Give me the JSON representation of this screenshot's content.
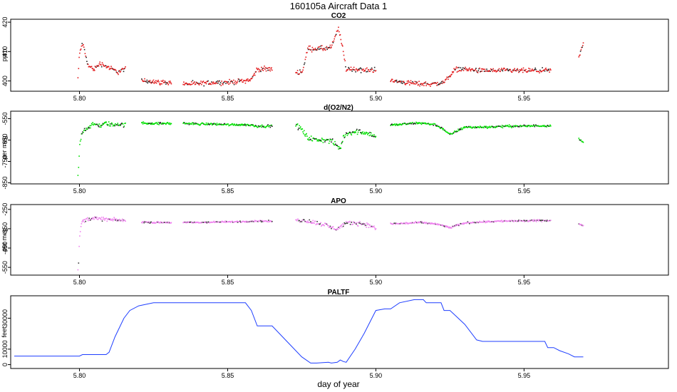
{
  "figure": {
    "title": "160105a   Aircraft Data 1",
    "xlabel": "day of year"
  },
  "chart_data": [
    {
      "type": "scatter",
      "title": "CO2",
      "ylabel": "ppm",
      "color": "#e31a1c",
      "shadow_color": "#222222",
      "xlim": [
        5.778,
        5.998
      ],
      "ylim": [
        396.5,
        421
      ],
      "xticks": [
        5.8,
        5.85,
        5.9,
        5.95
      ],
      "xtick_labels": [
        "5.80",
        "5.85",
        "5.90",
        "5.95"
      ],
      "yticks": [
        400,
        410,
        420
      ],
      "ytick_labels": [
        "400",
        "410",
        "420"
      ],
      "series": [
        {
          "segments": [
            {
              "x": [
                5.7995,
                5.8,
                5.801,
                5.802,
                5.803,
                5.805,
                5.807,
                5.809,
                5.811,
                5.813,
                5.815,
                5.8155
              ],
              "y": [
                401,
                409,
                413,
                409,
                405,
                404,
                406,
                405,
                404,
                403,
                404,
                404
              ],
              "spread": 1.2
            },
            {
              "x": [
                5.821,
                5.824,
                5.827,
                5.831
              ],
              "y": [
                400,
                400,
                399.5,
                399.5
              ],
              "spread": 1.2
            },
            {
              "x": [
                5.835,
                5.84,
                5.845,
                5.85,
                5.855,
                5.858,
                5.86,
                5.865
              ],
              "y": [
                399,
                399,
                399.5,
                399.5,
                400,
                400.5,
                404,
                404
              ],
              "spread": 1.2
            },
            {
              "x": [
                5.873,
                5.875,
                5.876,
                5.877,
                5.88,
                5.883,
                5.885,
                5.886,
                5.887,
                5.8875,
                5.888,
                5.889,
                5.89,
                5.893,
                5.897,
                5.9
              ],
              "y": [
                403,
                403,
                406,
                411,
                411,
                411,
                411.5,
                414,
                417,
                418,
                415,
                410,
                404,
                404,
                403.5,
                404
              ],
              "spread": 1.3
            },
            {
              "x": [
                5.905,
                5.91,
                5.915,
                5.92,
                5.923,
                5.925,
                5.927,
                5.93,
                5.935,
                5.94,
                5.945,
                5.95,
                5.955,
                5.959
              ],
              "y": [
                400,
                399.5,
                399,
                399,
                399.5,
                402,
                404,
                404,
                403.5,
                403.5,
                403.5,
                403.5,
                403.5,
                403.5
              ],
              "spread": 1.2
            },
            {
              "x": [
                5.9685,
                5.9695,
                5.97
              ],
              "y": [
                408,
                411,
                413
              ],
              "spread": 1.0
            }
          ]
        }
      ]
    },
    {
      "type": "scatter",
      "title": "d(O2/N2)",
      "ylabel": "per meg",
      "color": "#00e000",
      "shadow_color": "#1a1a1a",
      "xlim": [
        5.778,
        5.998
      ],
      "ylim": [
        -855,
        -515
      ],
      "xticks": [
        5.8,
        5.85,
        5.9,
        5.95
      ],
      "xtick_labels": [
        "5.80",
        "5.85",
        "5.90",
        "5.95"
      ],
      "yticks": [
        -550,
        -650,
        -750,
        -850
      ],
      "ytick_labels": [
        "-550",
        "-650",
        "-750",
        "-850"
      ],
      "series": [
        {
          "segments": [
            {
              "x": [
                5.7995,
                5.7998,
                5.8,
                5.8005,
                5.801,
                5.802,
                5.803,
                5.805,
                5.807,
                5.809,
                5.811,
                5.813,
                5.815,
                5.8155
              ],
              "y": [
                -820,
                -760,
                -680,
                -640,
                -610,
                -600,
                -590,
                -575,
                -585,
                -570,
                -580,
                -575,
                -580,
                -580
              ],
              "spread": 15
            },
            {
              "x": [
                5.821,
                5.824,
                5.827,
                5.831
              ],
              "y": [
                -570,
                -572,
                -573,
                -572
              ],
              "spread": 8
            },
            {
              "x": [
                5.835,
                5.84,
                5.845,
                5.85,
                5.855,
                5.858,
                5.86,
                5.865
              ],
              "y": [
                -572,
                -575,
                -575,
                -578,
                -578,
                -580,
                -585,
                -585
              ],
              "spread": 8
            },
            {
              "x": [
                5.873,
                5.875,
                5.877,
                5.88,
                5.883,
                5.885,
                5.887,
                5.888,
                5.889,
                5.89,
                5.893,
                5.897,
                5.9
              ],
              "y": [
                -580,
                -600,
                -640,
                -650,
                -650,
                -655,
                -680,
                -690,
                -640,
                -620,
                -610,
                -615,
                -635
              ],
              "spread": 18
            },
            {
              "x": [
                5.905,
                5.91,
                5.915,
                5.92,
                5.923,
                5.924,
                5.925,
                5.927,
                5.93,
                5.935,
                5.94,
                5.945,
                5.95,
                5.955,
                5.959
              ],
              "y": [
                -580,
                -575,
                -570,
                -578,
                -600,
                -615,
                -625,
                -610,
                -590,
                -590,
                -588,
                -585,
                -585,
                -583,
                -583
              ],
              "spread": 8
            },
            {
              "x": [
                5.9685,
                5.969,
                5.97
              ],
              "y": [
                -640,
                -650,
                -660
              ],
              "spread": 6
            }
          ]
        }
      ]
    },
    {
      "type": "scatter",
      "title": "APO",
      "ylabel": "per meg",
      "color": "#ee82ee",
      "shadow_color": "#3a3a3a",
      "xlim": [
        5.778,
        5.998
      ],
      "ylim": [
        -590,
        -225
      ],
      "xticks": [
        5.8,
        5.85,
        5.9,
        5.95
      ],
      "xtick_labels": [
        "5.80",
        "5.85",
        "5.90",
        "5.95"
      ],
      "yticks": [
        -250,
        -350,
        -450,
        -550
      ],
      "ytick_labels": [
        "-250",
        "-350",
        "-450",
        "-550"
      ],
      "series": [
        {
          "segments": [
            {
              "x": [
                5.7995,
                5.7998,
                5.8,
                5.8005,
                5.801,
                5.803,
                5.805,
                5.807,
                5.809,
                5.811,
                5.813,
                5.8155
              ],
              "y": [
                -570,
                -500,
                -400,
                -340,
                -310,
                -300,
                -295,
                -300,
                -300,
                -305,
                -305,
                -310
              ],
              "spread": 14
            },
            {
              "x": [
                5.821,
                5.825,
                5.831
              ],
              "y": [
                -315,
                -318,
                -318
              ],
              "spread": 6
            },
            {
              "x": [
                5.835,
                5.84,
                5.845,
                5.85,
                5.855,
                5.86,
                5.865
              ],
              "y": [
                -318,
                -318,
                -316,
                -315,
                -313,
                -310,
                -312
              ],
              "spread": 6
            },
            {
              "x": [
                5.873,
                5.877,
                5.88,
                5.883,
                5.885,
                5.887,
                5.889,
                5.891,
                5.893,
                5.896,
                5.899,
                5.9
              ],
              "y": [
                -305,
                -310,
                -320,
                -330,
                -345,
                -350,
                -330,
                -320,
                -320,
                -325,
                -340,
                -350
              ],
              "spread": 16
            },
            {
              "x": [
                5.905,
                5.91,
                5.915,
                5.92,
                5.923,
                5.925,
                5.927,
                5.93,
                5.935,
                5.94,
                5.945,
                5.95,
                5.955,
                5.959
              ],
              "y": [
                -325,
                -322,
                -318,
                -325,
                -335,
                -345,
                -335,
                -320,
                -315,
                -312,
                -310,
                -310,
                -308,
                -308
              ],
              "spread": 7
            },
            {
              "x": [
                5.9685,
                5.969,
                5.97
              ],
              "y": [
                -325,
                -330,
                -335
              ],
              "spread": 6
            }
          ]
        }
      ]
    },
    {
      "type": "line",
      "title": "PALTF",
      "ylabel": "feet",
      "color": "#1f3fff",
      "xlim": [
        5.778,
        5.998
      ],
      "ylim": [
        -2500,
        44500
      ],
      "xticks": [
        5.8,
        5.85,
        5.9,
        5.95
      ],
      "xtick_labels": [
        "5.80",
        "5.85",
        "5.90",
        "5.95"
      ],
      "yticks": [
        0,
        10000,
        30000
      ],
      "ytick_labels": [
        "0",
        "10000",
        "30000"
      ],
      "series": [
        {
          "x": [
            5.778,
            5.8,
            5.801,
            5.809,
            5.81,
            5.812,
            5.815,
            5.817,
            5.82,
            5.825,
            5.83,
            5.84,
            5.85,
            5.856,
            5.858,
            5.86,
            5.865,
            5.87,
            5.875,
            5.878,
            5.88,
            5.884,
            5.885,
            5.887,
            5.888,
            5.889,
            5.89,
            5.893,
            5.896,
            5.9,
            5.903,
            5.905,
            5.908,
            5.913,
            5.916,
            5.917,
            5.918,
            5.922,
            5.923,
            5.925,
            5.93,
            5.934,
            5.936,
            5.94,
            5.95,
            5.957,
            5.958,
            5.96,
            5.962,
            5.965,
            5.967,
            5.97
          ],
          "y": [
            5500,
            5500,
            6500,
            6500,
            8000,
            18000,
            30000,
            35000,
            38000,
            40000,
            40000,
            40000,
            40000,
            40000,
            35000,
            25000,
            25000,
            15000,
            5000,
            1000,
            1000,
            1500,
            1000,
            1500,
            3000,
            2000,
            1500,
            10000,
            20000,
            35000,
            36000,
            36000,
            40000,
            42000,
            42000,
            40000,
            40000,
            40000,
            35000,
            35000,
            26000,
            16000,
            15000,
            15000,
            15000,
            15000,
            11000,
            11000,
            9000,
            7000,
            5000,
            5000
          ]
        }
      ]
    }
  ]
}
